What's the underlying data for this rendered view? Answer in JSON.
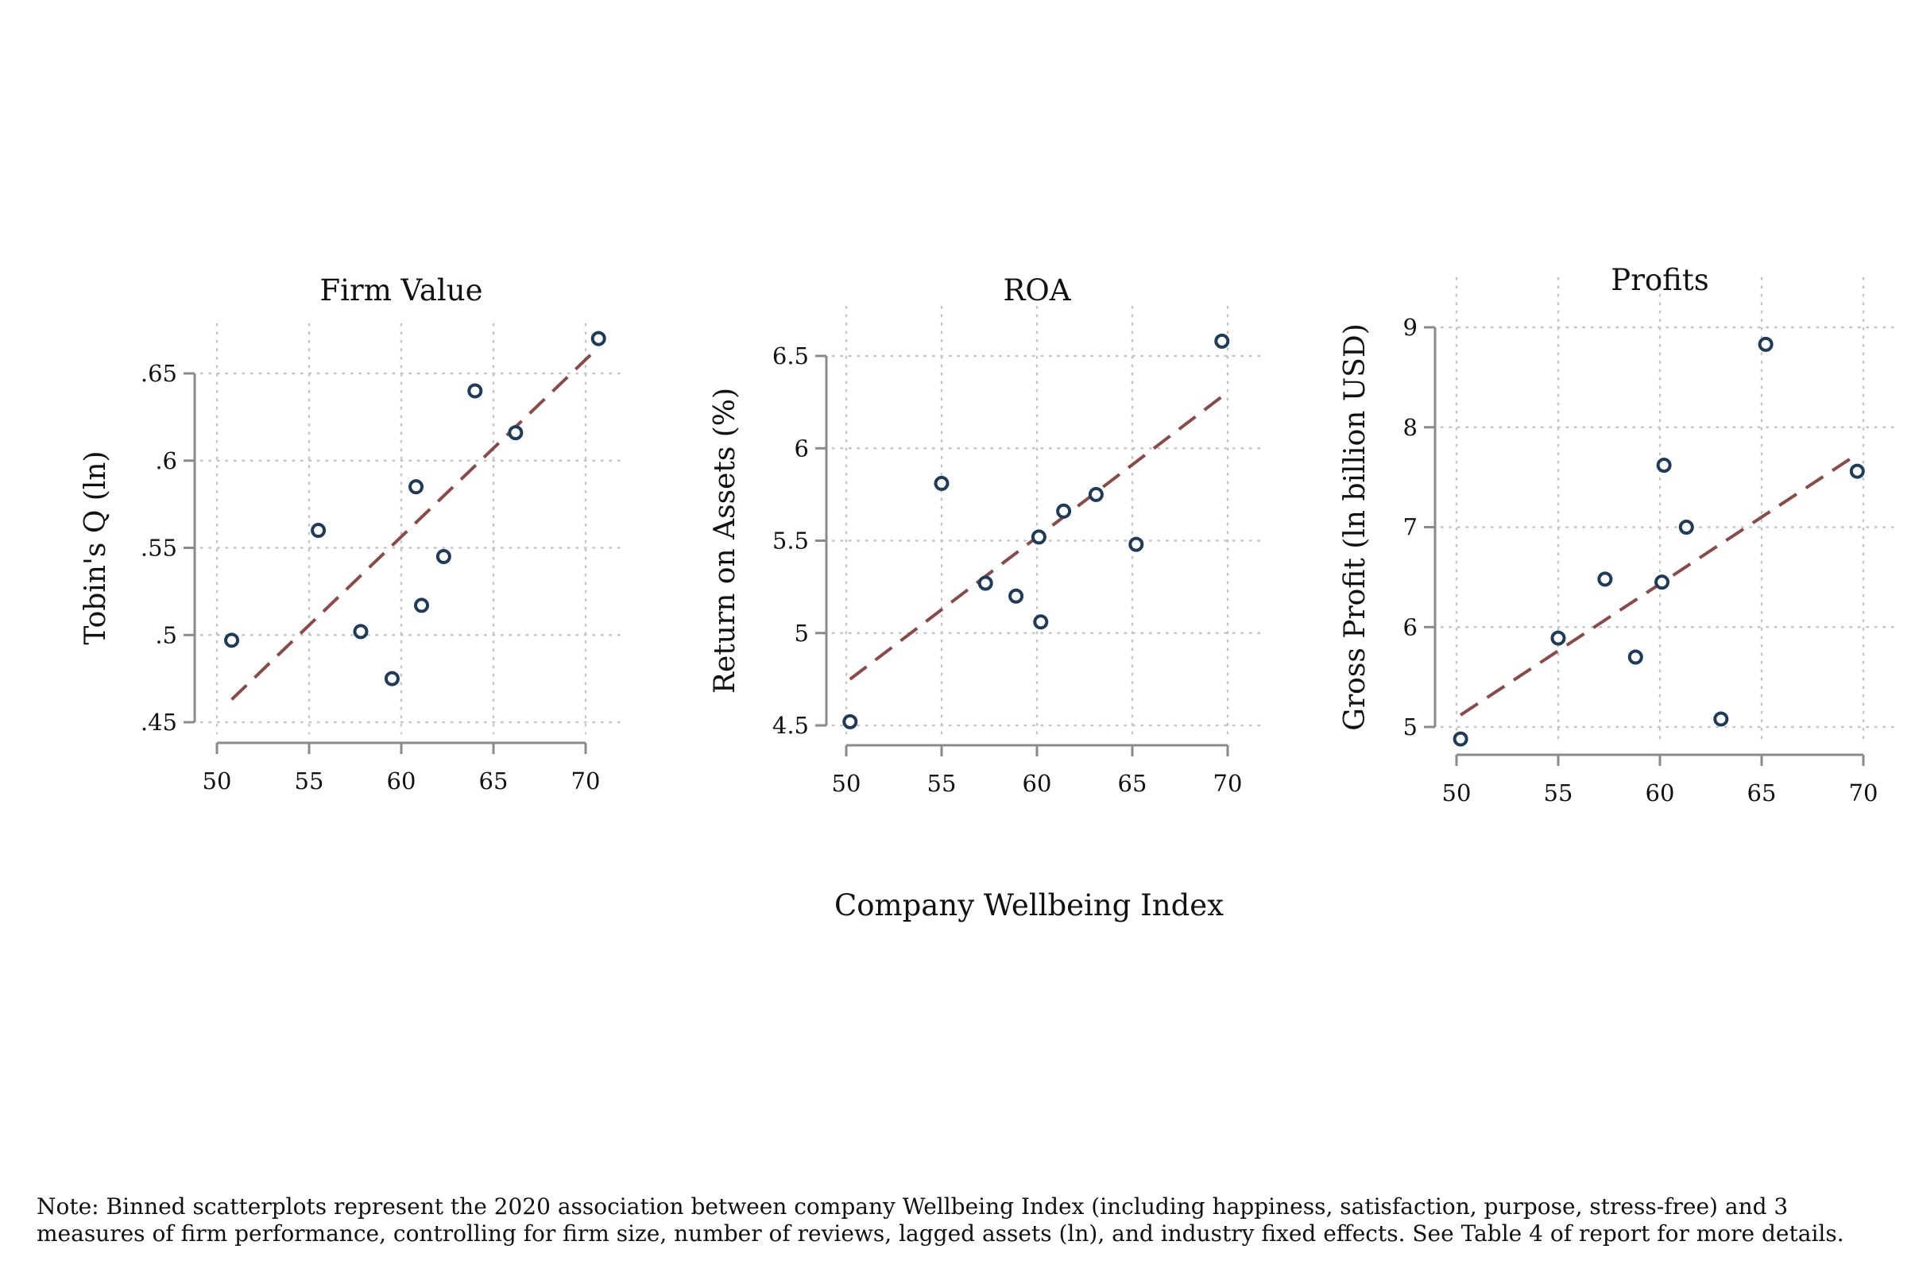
{
  "shared_xlabel": "Company Wellbeing Index",
  "note": {
    "line1": "Note: Binned scatterplots represent the 2020 association between company Wellbeing Index (including happiness, satisfaction, purpose, stress-free) and 3",
    "line2": "measures of firm performance, controlling for firm size, number of reviews, lagged assets (ln), and industry fixed effects. See Table 4 of report for more details."
  },
  "colors": {
    "marker": "#1f3b5a",
    "fit_line": "#8b4a4a",
    "axis": "#8a8a8a",
    "grid": "#c4c4c4"
  },
  "chart_data": [
    {
      "type": "scatter",
      "title": "Firm Value",
      "ylabel": "Tobin's Q (ln)",
      "xlabel": "",
      "xlim": [
        50,
        70
      ],
      "ylim": [
        0.45,
        0.65
      ],
      "xticks": [
        50,
        55,
        60,
        65,
        70
      ],
      "xtick_labels": [
        "50",
        "55",
        "60",
        "65",
        "70"
      ],
      "yticks": [
        0.45,
        0.5,
        0.55,
        0.6,
        0.65
      ],
      "ytick_labels": [
        ".45",
        ".5",
        ".55",
        ".6",
        ".65"
      ],
      "grid": true,
      "points": [
        {
          "x": 50.8,
          "y": 0.497
        },
        {
          "x": 55.5,
          "y": 0.56
        },
        {
          "x": 57.8,
          "y": 0.502
        },
        {
          "x": 59.5,
          "y": 0.475
        },
        {
          "x": 60.8,
          "y": 0.585
        },
        {
          "x": 61.1,
          "y": 0.517
        },
        {
          "x": 62.3,
          "y": 0.545
        },
        {
          "x": 64.0,
          "y": 0.64
        },
        {
          "x": 66.2,
          "y": 0.616
        },
        {
          "x": 70.7,
          "y": 0.67
        }
      ],
      "fit": {
        "x": [
          50.8,
          70.7
        ],
        "y": [
          0.463,
          0.665
        ]
      }
    },
    {
      "type": "scatter",
      "title": "ROA",
      "ylabel": "Return on Assets (%)",
      "xlabel": "",
      "xlim": [
        50,
        70
      ],
      "ylim": [
        4.5,
        6.5
      ],
      "xticks": [
        50,
        55,
        60,
        65,
        70
      ],
      "xtick_labels": [
        "50",
        "55",
        "60",
        "65",
        "70"
      ],
      "yticks": [
        4.5,
        5,
        5.5,
        6,
        6.5
      ],
      "ytick_labels": [
        "4.5",
        "5",
        "5.5",
        "6",
        "6.5"
      ],
      "grid": true,
      "points": [
        {
          "x": 50.2,
          "y": 4.52
        },
        {
          "x": 55.0,
          "y": 5.81
        },
        {
          "x": 57.3,
          "y": 5.27
        },
        {
          "x": 58.9,
          "y": 5.2
        },
        {
          "x": 60.1,
          "y": 5.52
        },
        {
          "x": 60.2,
          "y": 5.06
        },
        {
          "x": 61.4,
          "y": 5.66
        },
        {
          "x": 63.1,
          "y": 5.75
        },
        {
          "x": 65.2,
          "y": 5.48
        },
        {
          "x": 69.7,
          "y": 6.58
        }
      ],
      "fit": {
        "x": [
          50.2,
          69.7
        ],
        "y": [
          4.75,
          6.28
        ]
      }
    },
    {
      "type": "scatter",
      "title": "Profits",
      "ylabel": "Gross Profit (ln billion USD)",
      "xlabel": "",
      "xlim": [
        50,
        70
      ],
      "ylim": [
        5,
        9
      ],
      "xticks": [
        50,
        55,
        60,
        65,
        70
      ],
      "xtick_labels": [
        "50",
        "55",
        "60",
        "65",
        "70"
      ],
      "yticks": [
        5,
        6,
        7,
        8,
        9
      ],
      "ytick_labels": [
        "5",
        "6",
        "7",
        "8",
        "9"
      ],
      "grid": true,
      "points": [
        {
          "x": 50.2,
          "y": 4.88
        },
        {
          "x": 55.0,
          "y": 5.89
        },
        {
          "x": 57.3,
          "y": 6.48
        },
        {
          "x": 58.8,
          "y": 5.7
        },
        {
          "x": 60.1,
          "y": 6.45
        },
        {
          "x": 60.2,
          "y": 7.62
        },
        {
          "x": 61.3,
          "y": 7.0
        },
        {
          "x": 63.0,
          "y": 5.08
        },
        {
          "x": 65.2,
          "y": 8.83
        },
        {
          "x": 69.7,
          "y": 7.56
        }
      ],
      "fit": {
        "x": [
          50.2,
          69.7
        ],
        "y": [
          5.12,
          7.73
        ]
      }
    }
  ]
}
